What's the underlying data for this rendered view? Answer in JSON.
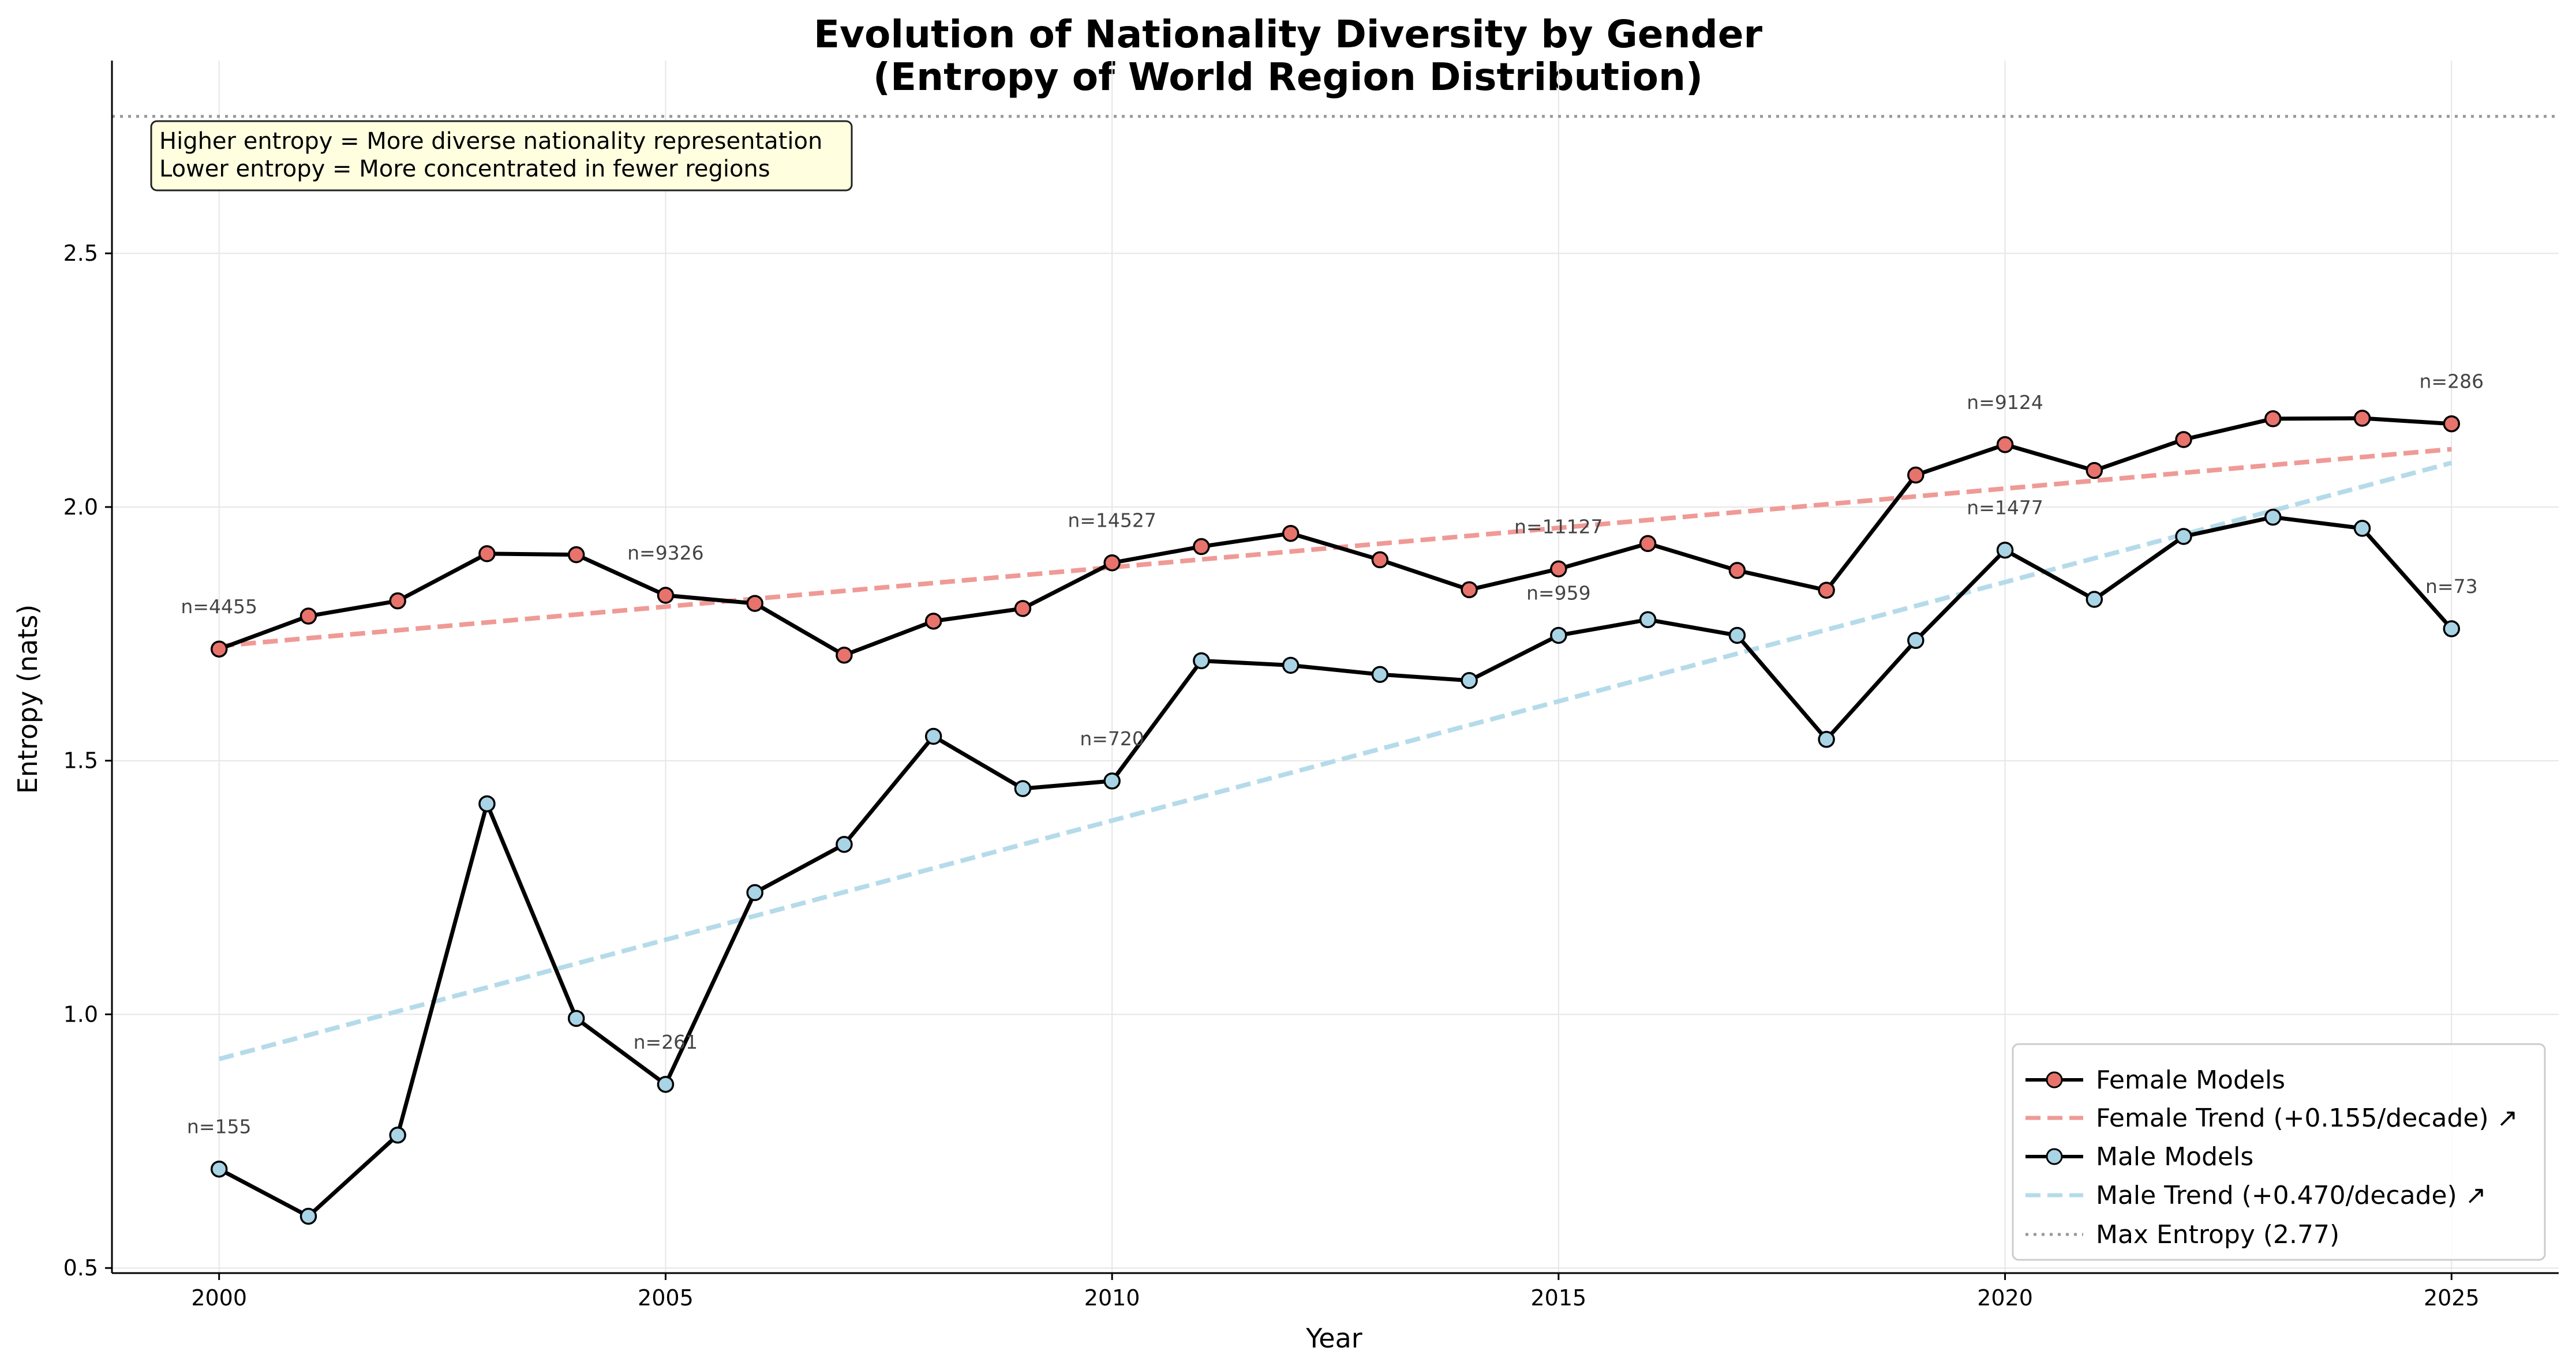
{
  "chart_data": {
    "type": "line",
    "title_line1": "Evolution of Nationality Diversity by Gender",
    "title_line2": "(Entropy of World Region Distribution)",
    "xlabel": "Year",
    "ylabel": "Entropy (nats)",
    "xlim": [
      1998.8,
      2026.2
    ],
    "ylim": [
      0.49,
      2.88
    ],
    "x_ticks": [
      2000,
      2005,
      2010,
      2015,
      2020,
      2025
    ],
    "y_ticks": [
      0.5,
      1.0,
      1.5,
      2.0,
      2.5
    ],
    "x_tick_labels": [
      "2000",
      "2005",
      "2010",
      "2015",
      "2020",
      "2025"
    ],
    "y_tick_labels": [
      "0.5",
      "1.0",
      "1.5",
      "2.0",
      "2.5"
    ],
    "grid": true,
    "legend_position": "lower-right",
    "years": [
      2000,
      2001,
      2002,
      2003,
      2004,
      2005,
      2006,
      2007,
      2008,
      2009,
      2010,
      2011,
      2012,
      2013,
      2014,
      2015,
      2016,
      2017,
      2018,
      2019,
      2020,
      2021,
      2022,
      2023,
      2024,
      2025
    ],
    "series": [
      {
        "name": "Female Models",
        "color": "#e8736c",
        "values": [
          1.72,
          1.785,
          1.815,
          1.908,
          1.906,
          1.826,
          1.81,
          1.708,
          1.775,
          1.8,
          1.89,
          1.922,
          1.948,
          1.896,
          1.837,
          1.878,
          1.928,
          1.875,
          1.836,
          2.063,
          2.123,
          2.072,
          2.133,
          2.174,
          2.175,
          2.164
        ]
      },
      {
        "name": "Male Models",
        "color": "#a8d4e6",
        "values": [
          0.695,
          0.602,
          0.762,
          1.415,
          0.992,
          0.862,
          1.24,
          1.335,
          1.548,
          1.445,
          1.46,
          1.697,
          1.688,
          1.67,
          1.658,
          1.747,
          1.778,
          1.747,
          1.542,
          1.737,
          1.915,
          1.818,
          1.942,
          1.98,
          1.958,
          1.76
        ]
      }
    ],
    "trends": [
      {
        "name": "Female Trend (+0.155/decade) ↗",
        "color": "#ef9a96",
        "x": [
          2000,
          2025
        ],
        "y": [
          1.726,
          2.114
        ]
      },
      {
        "name": "Male Trend (+0.470/decade) ↗",
        "color": "#b5dbea",
        "x": [
          2000,
          2025
        ],
        "y": [
          0.912,
          2.087
        ]
      }
    ],
    "max_entropy": {
      "name": "Max Entropy (2.77)",
      "value": 2.77,
      "color": "#999999"
    },
    "female_annotations": [
      {
        "year": 2000,
        "value": 1.72,
        "text": "n=4455"
      },
      {
        "year": 2005,
        "value": 1.826,
        "text": "n=9326"
      },
      {
        "year": 2010,
        "value": 1.89,
        "text": "n=14527"
      },
      {
        "year": 2015,
        "value": 1.878,
        "text": "n=11127"
      },
      {
        "year": 2020,
        "value": 2.123,
        "text": "n=9124"
      },
      {
        "year": 2025,
        "value": 2.164,
        "text": "n=286"
      }
    ],
    "male_annotations": [
      {
        "year": 2000,
        "value": 0.695,
        "text": "n=155"
      },
      {
        "year": 2005,
        "value": 0.862,
        "text": "n=261"
      },
      {
        "year": 2010,
        "value": 1.46,
        "text": "n=720"
      },
      {
        "year": 2015,
        "value": 1.747,
        "text": "n=959"
      },
      {
        "year": 2020,
        "value": 1.915,
        "text": "n=1477"
      },
      {
        "year": 2025,
        "value": 1.76,
        "text": "n=73"
      }
    ],
    "note_lines": [
      "Higher entropy = More diverse nationality representation",
      "Lower entropy = More concentrated in fewer regions"
    ],
    "legend": [
      "Female Models",
      "Female Trend (+0.155/decade) ↗",
      "Male Models",
      "Male Trend (+0.470/decade) ↗",
      "Max Entropy (2.77)"
    ]
  }
}
